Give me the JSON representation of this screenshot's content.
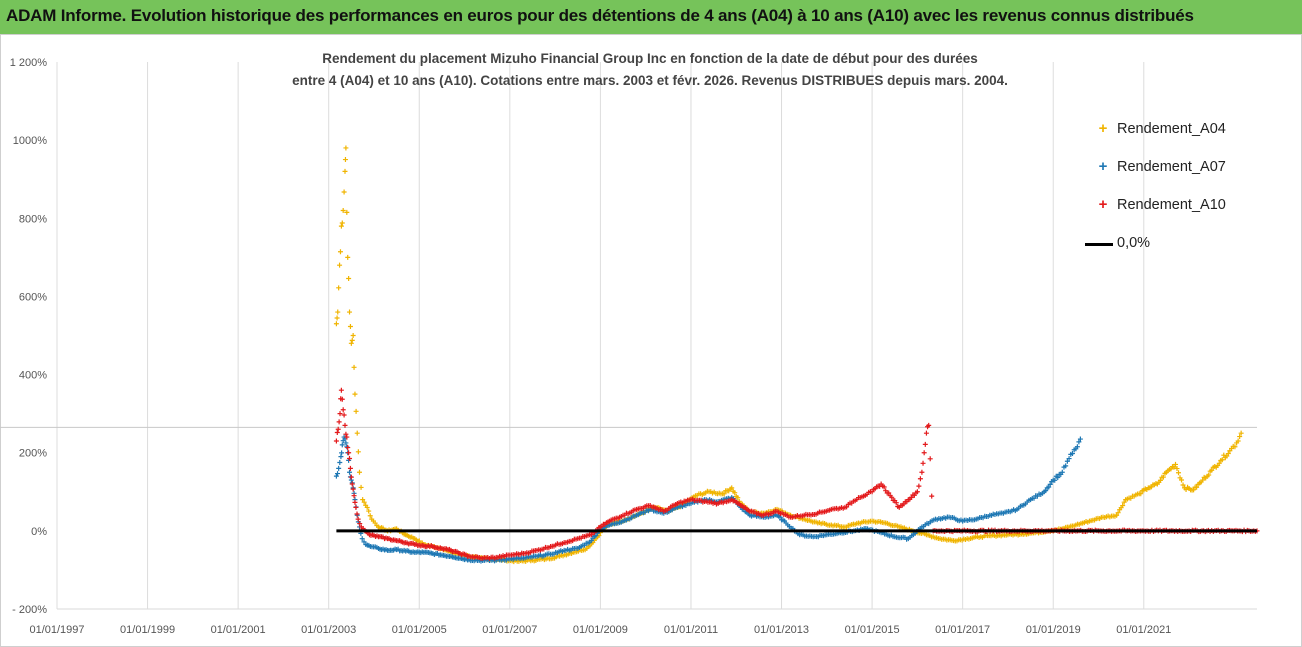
{
  "header": {
    "title": "ADAM Informe. Evolution historique des performances en euros pour des détentions de 4 ans (A04) à 10 ans (A10) avec les revenus connus distribués"
  },
  "chart_data": {
    "type": "scatter",
    "title_line1": "Rendement du placement Mizuho Financial Group Inc en fonction de la date de début pour des durées",
    "title_line2": "entre 4 (A04) et 10 ans (A10).  Cotations entre mars. 2003 et févr. 2026. Revenus DISTRIBUES depuis mars. 2004.",
    "x_range": [
      1997.0,
      2023.5
    ],
    "y_range": [
      -200,
      1200
    ],
    "y_ticks": [
      {
        "v": 1200,
        "label": "1 200%"
      },
      {
        "v": 1000,
        "label": "1000%"
      },
      {
        "v": 800,
        "label": "800%"
      },
      {
        "v": 600,
        "label": "600%"
      },
      {
        "v": 400,
        "label": "400%"
      },
      {
        "v": 200,
        "label": "200%"
      },
      {
        "v": 0,
        "label": "0%"
      },
      {
        "v": -200,
        "label": "- 200%"
      }
    ],
    "x_ticks": [
      {
        "v": 1997,
        "label": "01/01/1997"
      },
      {
        "v": 1999,
        "label": "01/01/1999"
      },
      {
        "v": 2001,
        "label": "01/01/2001"
      },
      {
        "v": 2003,
        "label": "01/01/2003"
      },
      {
        "v": 2005,
        "label": "01/01/2005"
      },
      {
        "v": 2007,
        "label": "01/01/2007"
      },
      {
        "v": 2009,
        "label": "01/01/2009"
      },
      {
        "v": 2011,
        "label": "01/01/2011"
      },
      {
        "v": 2013,
        "label": "01/01/2013"
      },
      {
        "v": 2015,
        "label": "01/01/2015"
      },
      {
        "v": 2017,
        "label": "01/01/2017"
      },
      {
        "v": 2019,
        "label": "01/01/2019"
      },
      {
        "v": 2021,
        "label": "01/01/2021"
      }
    ],
    "reference_line_y": 265,
    "grid": "vertical",
    "legend_position": "top-right",
    "series": [
      {
        "name": "Rendement_A04",
        "color": "#f0b400",
        "marker": "+",
        "points": [
          [
            2003.17,
            530
          ],
          [
            2003.2,
            560
          ],
          [
            2003.24,
            680
          ],
          [
            2003.28,
            780
          ],
          [
            2003.32,
            820
          ],
          [
            2003.36,
            920
          ],
          [
            2003.38,
            980
          ],
          [
            2003.42,
            700
          ],
          [
            2003.46,
            560
          ],
          [
            2003.5,
            480
          ],
          [
            2003.54,
            500
          ],
          [
            2003.58,
            350
          ],
          [
            2003.63,
            250
          ],
          [
            2003.68,
            150
          ],
          [
            2003.75,
            80
          ],
          [
            2003.85,
            60
          ],
          [
            2003.95,
            30
          ],
          [
            2004.1,
            10
          ],
          [
            2004.3,
            0
          ],
          [
            2004.5,
            5
          ],
          [
            2004.7,
            -10
          ],
          [
            2004.9,
            -20
          ],
          [
            2005.1,
            -35
          ],
          [
            2005.3,
            -40
          ],
          [
            2005.5,
            -45
          ],
          [
            2005.7,
            -55
          ],
          [
            2005.9,
            -60
          ],
          [
            2006.1,
            -65
          ],
          [
            2006.3,
            -70
          ],
          [
            2006.6,
            -72
          ],
          [
            2006.9,
            -75
          ],
          [
            2007.2,
            -78
          ],
          [
            2007.5,
            -75
          ],
          [
            2007.8,
            -72
          ],
          [
            2008.1,
            -65
          ],
          [
            2008.4,
            -55
          ],
          [
            2008.7,
            -45
          ],
          [
            2008.9,
            -20
          ],
          [
            2009.1,
            10
          ],
          [
            2009.3,
            20
          ],
          [
            2009.6,
            30
          ],
          [
            2009.9,
            45
          ],
          [
            2010.2,
            60
          ],
          [
            2010.5,
            50
          ],
          [
            2010.8,
            65
          ],
          [
            2011.1,
            90
          ],
          [
            2011.4,
            100
          ],
          [
            2011.7,
            95
          ],
          [
            2011.9,
            110
          ],
          [
            2012.1,
            70
          ],
          [
            2012.3,
            50
          ],
          [
            2012.6,
            45
          ],
          [
            2012.9,
            55
          ],
          [
            2013.2,
            40
          ],
          [
            2013.5,
            30
          ],
          [
            2013.8,
            20
          ],
          [
            2014.1,
            15
          ],
          [
            2014.4,
            10
          ],
          [
            2014.7,
            20
          ],
          [
            2015.0,
            25
          ],
          [
            2015.3,
            20
          ],
          [
            2015.6,
            10
          ],
          [
            2015.9,
            0
          ],
          [
            2016.2,
            -10
          ],
          [
            2016.5,
            -20
          ],
          [
            2016.8,
            -25
          ],
          [
            2017.1,
            -20
          ],
          [
            2017.4,
            -15
          ],
          [
            2017.7,
            -12
          ],
          [
            2018.0,
            -10
          ],
          [
            2018.3,
            -8
          ],
          [
            2018.6,
            -5
          ],
          [
            2018.9,
            0
          ],
          [
            2019.2,
            5
          ],
          [
            2019.5,
            15
          ],
          [
            2019.8,
            25
          ],
          [
            2020.1,
            35
          ],
          [
            2020.4,
            40
          ],
          [
            2020.6,
            80
          ],
          [
            2020.9,
            95
          ],
          [
            2021.1,
            110
          ],
          [
            2021.3,
            120
          ],
          [
            2021.5,
            150
          ],
          [
            2021.7,
            170
          ],
          [
            2021.9,
            110
          ],
          [
            2022.1,
            105
          ],
          [
            2022.3,
            130
          ],
          [
            2022.5,
            155
          ],
          [
            2022.7,
            180
          ],
          [
            2022.9,
            205
          ],
          [
            2023.05,
            225
          ],
          [
            2023.15,
            250
          ]
        ]
      },
      {
        "name": "Rendement_A07",
        "color": "#1f78b4",
        "marker": "+",
        "points": [
          [
            2003.17,
            140
          ],
          [
            2003.22,
            160
          ],
          [
            2003.27,
            190
          ],
          [
            2003.3,
            220
          ],
          [
            2003.34,
            240
          ],
          [
            2003.38,
            225
          ],
          [
            2003.42,
            200
          ],
          [
            2003.46,
            150
          ],
          [
            2003.5,
            130
          ],
          [
            2003.54,
            110
          ],
          [
            2003.58,
            80
          ],
          [
            2003.63,
            40
          ],
          [
            2003.68,
            10
          ],
          [
            2003.74,
            -20
          ],
          [
            2003.82,
            -35
          ],
          [
            2003.92,
            -40
          ],
          [
            2004.1,
            -45
          ],
          [
            2004.3,
            -50
          ],
          [
            2004.5,
            -48
          ],
          [
            2004.7,
            -52
          ],
          [
            2004.9,
            -55
          ],
          [
            2005.1,
            -55
          ],
          [
            2005.3,
            -58
          ],
          [
            2005.5,
            -62
          ],
          [
            2005.7,
            -65
          ],
          [
            2005.9,
            -70
          ],
          [
            2006.1,
            -74
          ],
          [
            2006.4,
            -76
          ],
          [
            2006.7,
            -75
          ],
          [
            2007.0,
            -72
          ],
          [
            2007.3,
            -70
          ],
          [
            2007.6,
            -65
          ],
          [
            2007.9,
            -60
          ],
          [
            2008.2,
            -50
          ],
          [
            2008.5,
            -45
          ],
          [
            2008.8,
            -25
          ],
          [
            2009.0,
            5
          ],
          [
            2009.2,
            15
          ],
          [
            2009.5,
            25
          ],
          [
            2009.8,
            40
          ],
          [
            2010.1,
            55
          ],
          [
            2010.4,
            45
          ],
          [
            2010.7,
            60
          ],
          [
            2011.0,
            70
          ],
          [
            2011.3,
            80
          ],
          [
            2011.6,
            75
          ],
          [
            2011.9,
            85
          ],
          [
            2012.1,
            60
          ],
          [
            2012.3,
            40
          ],
          [
            2012.6,
            35
          ],
          [
            2012.9,
            40
          ],
          [
            2013.1,
            20
          ],
          [
            2013.4,
            -10
          ],
          [
            2013.7,
            -15
          ],
          [
            2014.0,
            -10
          ],
          [
            2014.3,
            -5
          ],
          [
            2014.6,
            0
          ],
          [
            2014.9,
            5
          ],
          [
            2015.2,
            -5
          ],
          [
            2015.5,
            -15
          ],
          [
            2015.8,
            -20
          ],
          [
            2016.1,
            10
          ],
          [
            2016.4,
            30
          ],
          [
            2016.7,
            35
          ],
          [
            2017.0,
            25
          ],
          [
            2017.3,
            30
          ],
          [
            2017.6,
            40
          ],
          [
            2017.9,
            45
          ],
          [
            2018.2,
            55
          ],
          [
            2018.5,
            80
          ],
          [
            2018.8,
            100
          ],
          [
            2019.0,
            130
          ],
          [
            2019.2,
            150
          ],
          [
            2019.35,
            185
          ],
          [
            2019.5,
            210
          ],
          [
            2019.6,
            235
          ]
        ]
      },
      {
        "name": "Rendement_A10",
        "color": "#e31a1c",
        "marker": "+",
        "points": [
          [
            2003.17,
            230
          ],
          [
            2003.21,
            260
          ],
          [
            2003.25,
            300
          ],
          [
            2003.28,
            360
          ],
          [
            2003.32,
            310
          ],
          [
            2003.36,
            270
          ],
          [
            2003.4,
            240
          ],
          [
            2003.44,
            200
          ],
          [
            2003.48,
            160
          ],
          [
            2003.52,
            120
          ],
          [
            2003.56,
            90
          ],
          [
            2003.6,
            60
          ],
          [
            2003.65,
            30
          ],
          [
            2003.72,
            10
          ],
          [
            2003.8,
            0
          ],
          [
            2003.9,
            -10
          ],
          [
            2004.1,
            -15
          ],
          [
            2004.3,
            -20
          ],
          [
            2004.5,
            -25
          ],
          [
            2004.7,
            -30
          ],
          [
            2004.9,
            -35
          ],
          [
            2005.1,
            -38
          ],
          [
            2005.3,
            -40
          ],
          [
            2005.5,
            -45
          ],
          [
            2005.7,
            -50
          ],
          [
            2005.9,
            -58
          ],
          [
            2006.1,
            -65
          ],
          [
            2006.4,
            -70
          ],
          [
            2006.7,
            -68
          ],
          [
            2007.0,
            -62
          ],
          [
            2007.3,
            -58
          ],
          [
            2007.6,
            -50
          ],
          [
            2007.9,
            -40
          ],
          [
            2008.2,
            -30
          ],
          [
            2008.5,
            -20
          ],
          [
            2008.8,
            -10
          ],
          [
            2009.0,
            10
          ],
          [
            2009.2,
            25
          ],
          [
            2009.5,
            40
          ],
          [
            2009.8,
            55
          ],
          [
            2010.1,
            65
          ],
          [
            2010.4,
            50
          ],
          [
            2010.7,
            70
          ],
          [
            2011.0,
            80
          ],
          [
            2011.3,
            75
          ],
          [
            2011.6,
            70
          ],
          [
            2011.9,
            80
          ],
          [
            2012.1,
            65
          ],
          [
            2012.3,
            50
          ],
          [
            2012.6,
            40
          ],
          [
            2012.9,
            50
          ],
          [
            2013.2,
            35
          ],
          [
            2013.5,
            40
          ],
          [
            2013.8,
            45
          ],
          [
            2014.1,
            55
          ],
          [
            2014.4,
            60
          ],
          [
            2014.7,
            85
          ],
          [
            2015.0,
            100
          ],
          [
            2015.2,
            120
          ],
          [
            2015.4,
            90
          ],
          [
            2015.6,
            60
          ],
          [
            2015.8,
            80
          ],
          [
            2016.0,
            100
          ],
          [
            2016.1,
            150
          ],
          [
            2016.15,
            200
          ],
          [
            2016.2,
            250
          ],
          [
            2016.25,
            270
          ],
          [
            2016.35,
            0
          ],
          [
            2017.0,
            0
          ],
          [
            2018.0,
            0
          ],
          [
            2019.0,
            0
          ],
          [
            2020.0,
            0
          ],
          [
            2021.0,
            0
          ],
          [
            2022.0,
            0
          ],
          [
            2023.0,
            0
          ],
          [
            2023.5,
            0
          ]
        ]
      }
    ],
    "zero_line": {
      "name": "0,0%",
      "color": "#000000",
      "x_from": 2003.17,
      "x_to": 2023.5,
      "y": 0
    }
  }
}
